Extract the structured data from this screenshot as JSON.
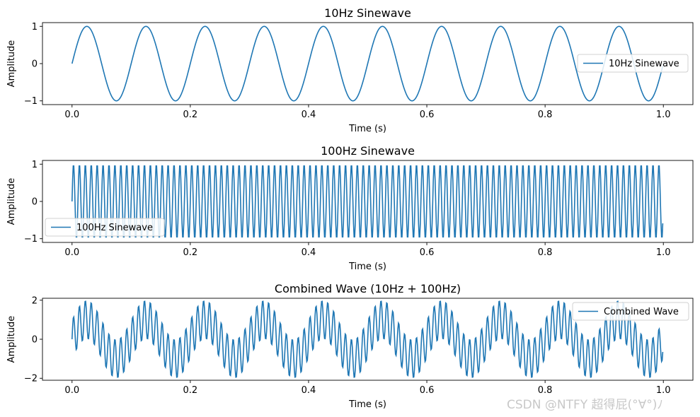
{
  "chart_data": [
    {
      "type": "line",
      "title": "10Hz Sinewave",
      "xlabel": "Time (s)",
      "ylabel": "Amplitude",
      "xlim": [
        -0.05,
        1.05
      ],
      "ylim": [
        -1.1,
        1.1
      ],
      "xticks": [
        0.0,
        0.2,
        0.4,
        0.6,
        0.8,
        1.0
      ],
      "xtick_labels": [
        "0.0",
        "0.2",
        "0.4",
        "0.6",
        "0.8",
        "1.0"
      ],
      "yticks": [
        -1,
        0,
        1
      ],
      "ytick_labels": [
        "−1",
        "0",
        "1"
      ],
      "grid": false,
      "legend_position": "center-right",
      "series": [
        {
          "name": "10Hz Sinewave",
          "color": "#1f77b4",
          "components": [
            {
              "frequency_hz": 10,
              "amplitude": 1
            }
          ],
          "x_range": [
            0,
            1
          ],
          "sample_rate_hz": 1000
        }
      ]
    },
    {
      "type": "line",
      "title": "100Hz Sinewave",
      "xlabel": "Time (s)",
      "ylabel": "Amplitude",
      "xlim": [
        -0.05,
        1.05
      ],
      "ylim": [
        -1.1,
        1.1
      ],
      "xticks": [
        0.0,
        0.2,
        0.4,
        0.6,
        0.8,
        1.0
      ],
      "xtick_labels": [
        "0.0",
        "0.2",
        "0.4",
        "0.6",
        "0.8",
        "1.0"
      ],
      "yticks": [
        -1,
        0,
        1
      ],
      "ytick_labels": [
        "−1",
        "0",
        "1"
      ],
      "grid": false,
      "legend_position": "lower-left",
      "series": [
        {
          "name": "100Hz Sinewave",
          "color": "#1f77b4",
          "components": [
            {
              "frequency_hz": 100,
              "amplitude": 1
            }
          ],
          "x_range": [
            0,
            1
          ],
          "sample_rate_hz": 1000
        }
      ]
    },
    {
      "type": "line",
      "title": "Combined Wave (10Hz + 100Hz)",
      "xlabel": "Time (s)",
      "ylabel": "Amplitude",
      "xlim": [
        -0.05,
        1.05
      ],
      "ylim": [
        -2.1,
        2.1
      ],
      "xticks": [
        0.0,
        0.2,
        0.4,
        0.6,
        0.8,
        1.0
      ],
      "xtick_labels": [
        "0.0",
        "0.2",
        "0.4",
        "0.6",
        "0.8",
        "1.0"
      ],
      "yticks": [
        -2,
        0,
        2
      ],
      "ytick_labels": [
        "−2",
        "0",
        "2"
      ],
      "grid": false,
      "legend_position": "upper-right",
      "series": [
        {
          "name": "Combined Wave",
          "color": "#1f77b4",
          "components": [
            {
              "frequency_hz": 10,
              "amplitude": 1
            },
            {
              "frequency_hz": 100,
              "amplitude": 1
            }
          ],
          "x_range": [
            0,
            1
          ],
          "sample_rate_hz": 1000
        }
      ]
    }
  ],
  "watermark": "CSDN @NTFY 超得屁(°∀°)ﾉ"
}
